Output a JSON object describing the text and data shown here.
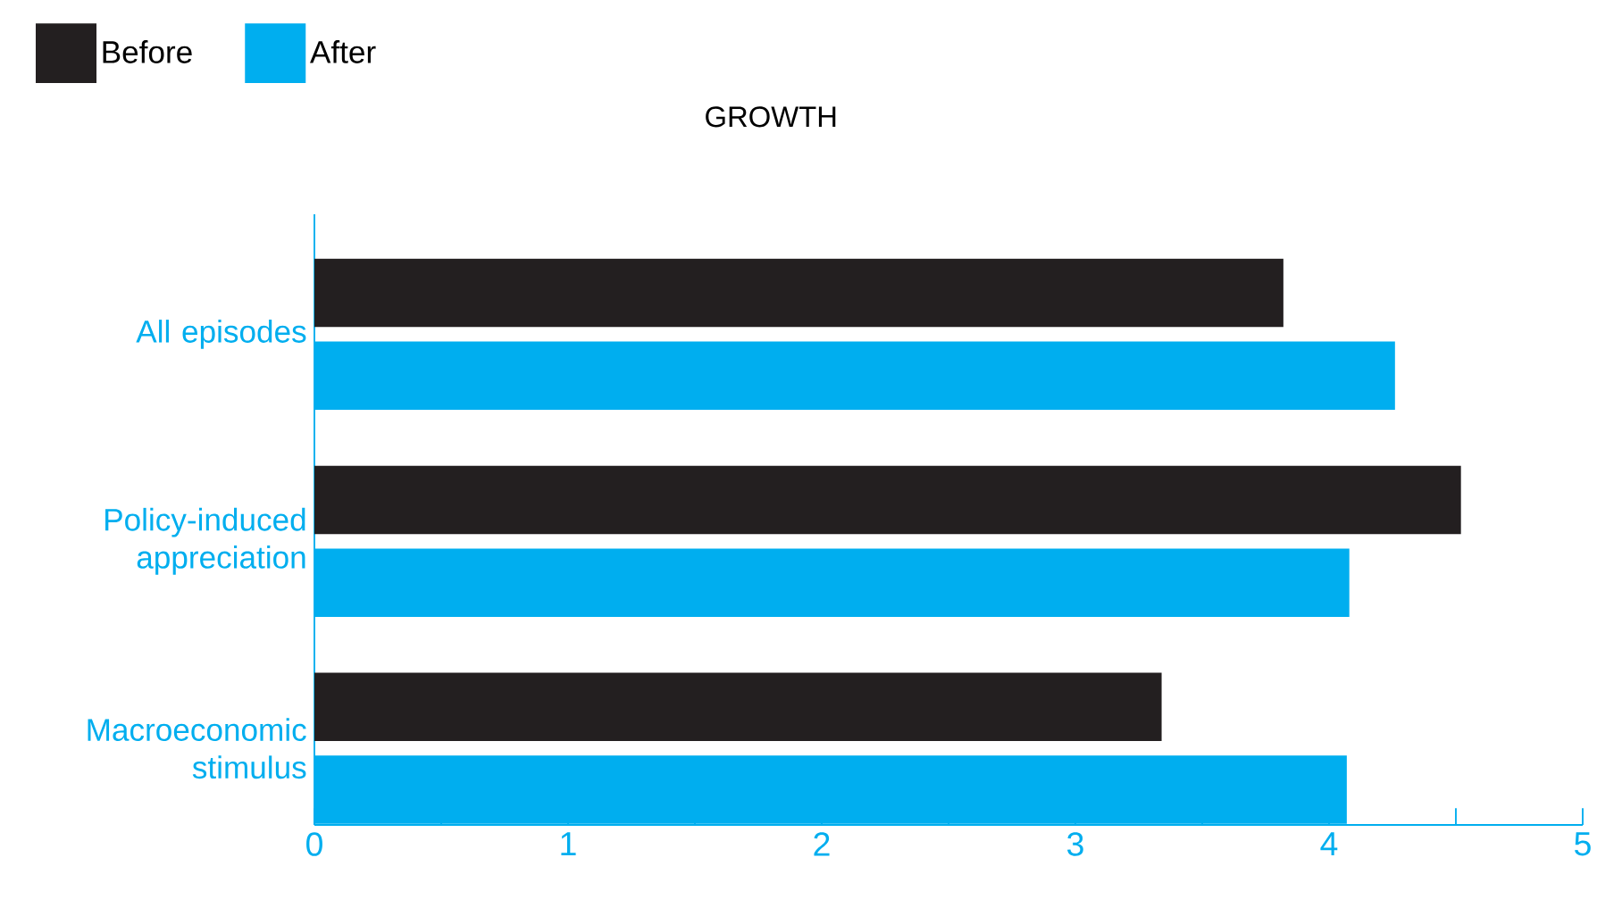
{
  "chart_data": {
    "type": "bar",
    "orientation": "horizontal",
    "title": "GROWTH",
    "categories": [
      "All episodes",
      "Policy-induced appreciation",
      "Macroeconomic stimulus"
    ],
    "series": [
      {
        "name": "Before",
        "color": "#231f20",
        "values": [
          3.82,
          4.52,
          3.34
        ]
      },
      {
        "name": "After",
        "color": "#00aeef",
        "values": [
          4.26,
          4.08,
          4.07
        ]
      }
    ],
    "xlim": [
      0,
      5
    ],
    "xticks": [
      0,
      {
        "value": 0.5,
        "label": null
      },
      1,
      {
        "value": 1.5,
        "label": null
      },
      2,
      {
        "value": 2.5,
        "label": null
      },
      3,
      {
        "value": 3.5,
        "label": null
      },
      4,
      {
        "value": 4.5,
        "label": null
      },
      5
    ],
    "legend": "top left",
    "grid": false
  }
}
